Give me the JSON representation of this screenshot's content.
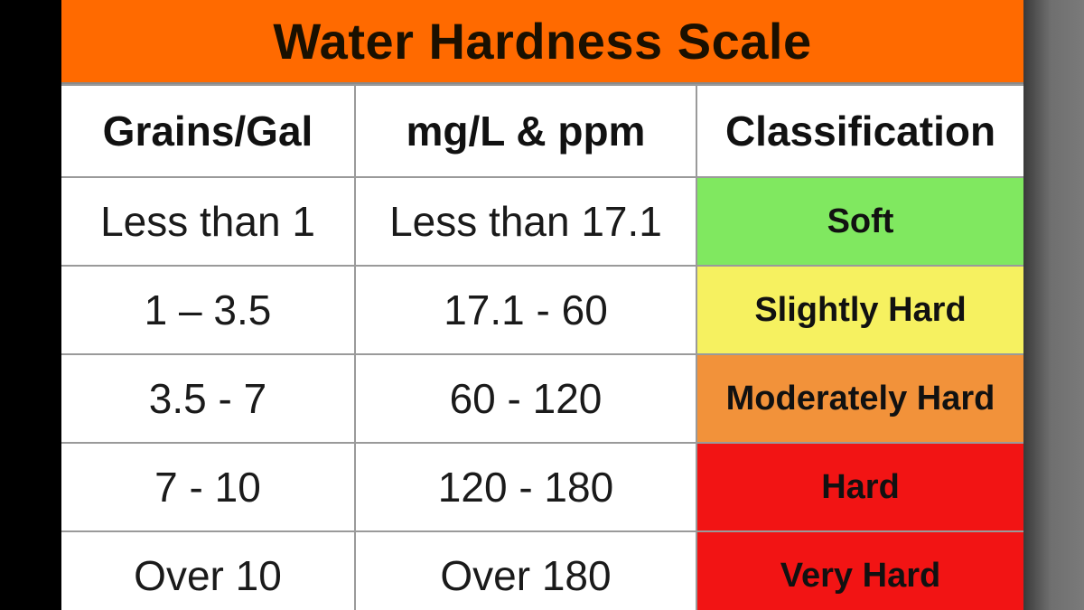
{
  "title": "Water Hardness Scale",
  "headers": {
    "grains": "Grains/Gal",
    "mgl": "mg/L & ppm",
    "classification": "Classification"
  },
  "rows": [
    {
      "grains": "Less than 1",
      "mgl": "Less than 17.1",
      "classification": "Soft",
      "color": "#80e860"
    },
    {
      "grains": "1 – 3.5",
      "mgl": "17.1 - 60",
      "classification": "Slightly Hard",
      "color": "#f6f160"
    },
    {
      "grains": "3.5 - 7",
      "mgl": "60 - 120",
      "classification": "Moderately Hard",
      "color": "#f2923a"
    },
    {
      "grains": "7 - 10",
      "mgl": "120 - 180",
      "classification": "Hard",
      "color": "#f21414"
    },
    {
      "grains": "Over 10",
      "mgl": "Over 180",
      "classification": "Very Hard",
      "color": "#f21414"
    }
  ],
  "colors": {
    "title_bar": "#ff6a00",
    "text_dark": "#1a1000"
  }
}
